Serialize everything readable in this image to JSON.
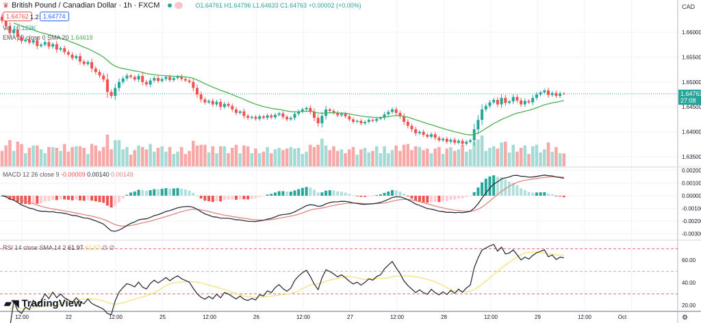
{
  "header": {
    "symbol_title": "British Pound / Canadian Dollar · 1h · FXCM",
    "open": "O1.64761",
    "high": "H1.64796",
    "low": "L1.64633",
    "close": "C1.64763",
    "change": "+0.00002 (+0.00%)",
    "bid": "1.64762",
    "spread": "1.2",
    "ask": "1.64774"
  },
  "indicators": {
    "vol_label": "Vol",
    "vol_value": "10.123K",
    "ema_label": "EMA 20 close 0 SMA 20",
    "ema_value": "1.64619",
    "macd_label": "MACD 12 26 close 9",
    "macd_hist": "-0.00009",
    "macd_line": "0.00140",
    "macd_signal": "0.00149",
    "rsi_label": "RSI 14 close SMA 14 2",
    "rsi_value": "61.97",
    "rsi_sma": "61.57",
    "rsi_extra": "∅ ∅"
  },
  "axis": {
    "currency": "CAD",
    "price_ticks": [
      "1.66000",
      "1.65500",
      "1.65000",
      "1.64500",
      "1.64000",
      "1.63500"
    ],
    "macd_ticks": [
      "0.00200",
      "0.00100",
      "0.00000",
      "-0.00100",
      "-0.00200",
      "-0.00300"
    ],
    "rsi_ticks": [
      "60.00",
      "40.00",
      "20.00"
    ],
    "last_price": "1.64763",
    "countdown": "27:08",
    "time_labels": [
      "12:00",
      "22",
      "12:00",
      "25",
      "12:00",
      "26",
      "12:00",
      "27",
      "12:00",
      "28",
      "12:00",
      "29",
      "12:00",
      "Oct"
    ]
  },
  "brand": "TradingView",
  "colors": {
    "up": "#26a69a",
    "down": "#ef5350",
    "ema": "#4caf50",
    "macd": "#2a2e39",
    "signal": "#e0847a",
    "rsi": "#2a2e39",
    "rsi_sma": "#f5e27a"
  },
  "chart_data": {
    "type": "candlestick",
    "symbol": "GBPCAD",
    "interval": "1h",
    "ylim": [
      1.634,
      1.6635
    ],
    "closes": [
      1.6623,
      1.6612,
      1.6598,
      1.6605,
      1.659,
      1.6582,
      1.6585,
      1.6579,
      1.6584,
      1.6572,
      1.6575,
      1.658,
      1.6571,
      1.6576,
      1.6565,
      1.6568,
      1.656,
      1.6555,
      1.6548,
      1.6552,
      1.6541,
      1.6536,
      1.654,
      1.6527,
      1.652,
      1.6513,
      1.6505,
      1.648,
      1.6472,
      1.6488,
      1.65,
      1.6507,
      1.6513,
      1.651,
      1.6505,
      1.6512,
      1.65,
      1.6495,
      1.6503,
      1.6508,
      1.6502,
      1.6506,
      1.651,
      1.6504,
      1.6508,
      1.6511,
      1.6506,
      1.6503,
      1.65,
      1.6488,
      1.6475,
      1.6465,
      1.6459,
      1.6462,
      1.6455,
      1.646,
      1.645,
      1.6456,
      1.6452,
      1.6445,
      1.6438,
      1.6441,
      1.6432,
      1.6428,
      1.643,
      1.6426,
      1.6431,
      1.6428,
      1.6433,
      1.6429,
      1.6434,
      1.6437,
      1.643,
      1.6425,
      1.6428,
      1.6436,
      1.6441,
      1.6445,
      1.6448,
      1.644,
      1.6428,
      1.6417,
      1.6432,
      1.6445,
      1.6442,
      1.6438,
      1.6433,
      1.6436,
      1.6431,
      1.6425,
      1.642,
      1.6422,
      1.6417,
      1.642,
      1.6424,
      1.6422,
      1.6426,
      1.6428,
      1.6435,
      1.644,
      1.6445,
      1.6438,
      1.6431,
      1.642,
      1.6412,
      1.6405,
      1.6397,
      1.64,
      1.6394,
      1.639,
      1.6395,
      1.6388,
      1.6383,
      1.6386,
      1.638,
      1.6384,
      1.6378,
      1.6382,
      1.6376,
      1.638,
      1.6383,
      1.6405,
      1.6424,
      1.6445,
      1.6452,
      1.6459,
      1.6464,
      1.6455,
      1.6468,
      1.6458,
      1.6461,
      1.647,
      1.6463,
      1.6455,
      1.6462,
      1.6459,
      1.6468,
      1.6475,
      1.6479,
      1.6483,
      1.6474,
      1.6478,
      1.6472,
      1.6477,
      1.64763
    ],
    "rsi_levels": [
      70,
      50,
      30
    ]
  }
}
